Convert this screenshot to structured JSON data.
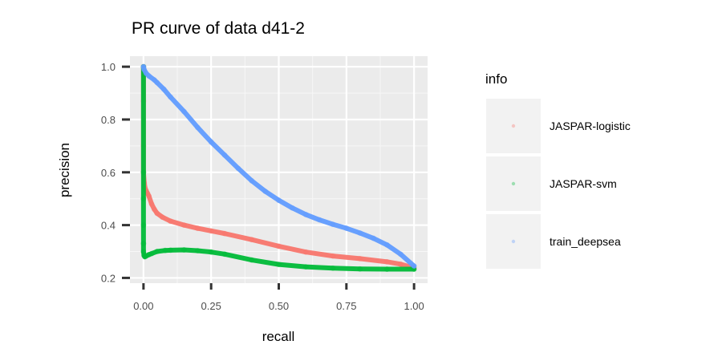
{
  "chart_data": {
    "type": "line",
    "title": "PR curve of data d41-2",
    "xlabel": "recall",
    "ylabel": "precision",
    "xlim": [
      0,
      1
    ],
    "ylim": [
      0.2,
      1.0
    ],
    "x_ticks": [
      0.0,
      0.25,
      0.5,
      0.75,
      1.0
    ],
    "x_tick_labels": [
      "0.00",
      "0.25",
      "0.50",
      "0.75",
      "1.00"
    ],
    "y_ticks": [
      0.2,
      0.4,
      0.6,
      0.8,
      1.0
    ],
    "y_tick_labels": [
      "0.2",
      "0.4",
      "0.6",
      "0.8",
      "1.0"
    ],
    "grid": true,
    "legend": {
      "title": "info",
      "position": "right"
    },
    "series": [
      {
        "name": "JASPAR-logistic",
        "color": "#F8766D",
        "x": [
          0,
          0,
          0,
          0,
          0.003,
          0.006,
          0.01,
          0.015,
          0.02,
          0.03,
          0.04,
          0.05,
          0.07,
          0.1,
          0.15,
          0.2,
          0.25,
          0.3,
          0.4,
          0.5,
          0.6,
          0.7,
          0.8,
          0.9,
          0.95,
          1.0
        ],
        "y": [
          1.0,
          0.87,
          0.7,
          0.6,
          0.56,
          0.54,
          0.53,
          0.52,
          0.51,
          0.48,
          0.46,
          0.445,
          0.43,
          0.415,
          0.4,
          0.388,
          0.378,
          0.368,
          0.345,
          0.32,
          0.298,
          0.283,
          0.273,
          0.261,
          0.252,
          0.238
        ]
      },
      {
        "name": "JASPAR-svm",
        "color": "#00BA38",
        "x": [
          0,
          0,
          0,
          0,
          0,
          0,
          0.002,
          0.005,
          0.01,
          0.02,
          0.03,
          0.05,
          0.08,
          0.1,
          0.15,
          0.2,
          0.25,
          0.3,
          0.4,
          0.5,
          0.6,
          0.7,
          0.8,
          0.9,
          1.0
        ],
        "y": [
          1.0,
          0.6,
          0.5,
          0.4,
          0.33,
          0.3,
          0.285,
          0.28,
          0.283,
          0.288,
          0.292,
          0.3,
          0.304,
          0.305,
          0.306,
          0.303,
          0.298,
          0.29,
          0.268,
          0.251,
          0.242,
          0.237,
          0.234,
          0.233,
          0.233
        ]
      },
      {
        "name": "train_deepsea",
        "color": "#619CFF",
        "x": [
          0,
          0.002,
          0.01,
          0.02,
          0.04,
          0.05,
          0.075,
          0.1,
          0.15,
          0.2,
          0.25,
          0.3,
          0.35,
          0.4,
          0.45,
          0.5,
          0.55,
          0.6,
          0.65,
          0.7,
          0.75,
          0.8,
          0.85,
          0.9,
          0.95,
          1.0
        ],
        "y": [
          1.0,
          0.99,
          0.975,
          0.965,
          0.95,
          0.94,
          0.915,
          0.885,
          0.83,
          0.77,
          0.715,
          0.665,
          0.615,
          0.568,
          0.528,
          0.494,
          0.465,
          0.44,
          0.42,
          0.403,
          0.388,
          0.37,
          0.35,
          0.325,
          0.29,
          0.245
        ]
      }
    ]
  }
}
